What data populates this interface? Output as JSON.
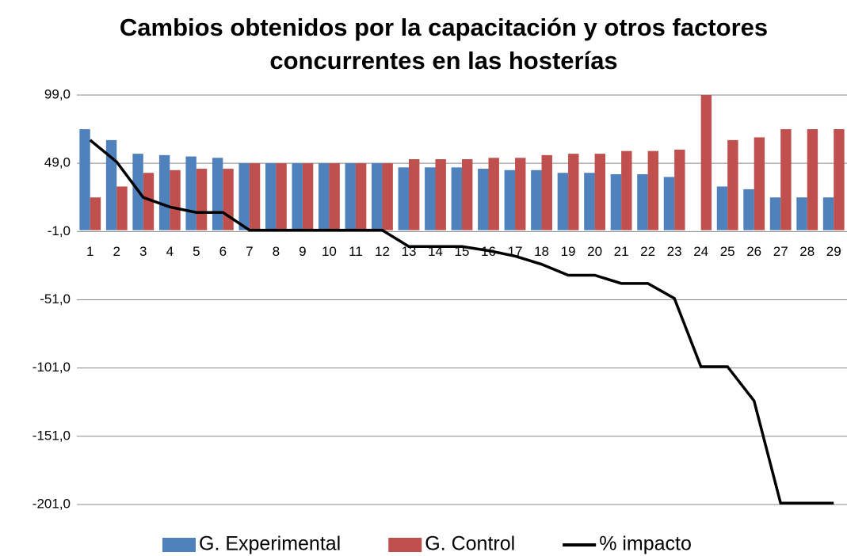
{
  "chart_data": {
    "type": "bar",
    "title": "Cambios obtenidos por la capacitación y otros factores concurrentes en las hosterías",
    "categories": [
      "1",
      "2",
      "3",
      "4",
      "5",
      "6",
      "7",
      "8",
      "9",
      "10",
      "11",
      "12",
      "13",
      "14",
      "15",
      "16",
      "17",
      "18",
      "19",
      "20",
      "21",
      "22",
      "23",
      "24",
      "25",
      "26",
      "27",
      "28",
      "29"
    ],
    "series": [
      {
        "name": "G. Experimental",
        "type": "bar",
        "color": "#4f81bd",
        "values": [
          74,
          66,
          56,
          55,
          54,
          53,
          49,
          49,
          49,
          49,
          49,
          49,
          46,
          46,
          46,
          45,
          44,
          44,
          42,
          42,
          41,
          41,
          39,
          null,
          32,
          30,
          24,
          24,
          24
        ]
      },
      {
        "name": "G. Control",
        "type": "bar",
        "color": "#c0504d",
        "values": [
          24,
          32,
          42,
          44,
          45,
          45,
          49,
          49,
          49,
          49,
          49,
          49,
          52,
          52,
          52,
          53,
          53,
          55,
          56,
          56,
          58,
          58,
          59,
          99,
          66,
          68,
          74,
          74,
          74
        ]
      },
      {
        "name": "% impacto",
        "type": "line",
        "color": "#000000",
        "values": [
          66,
          50,
          24,
          17,
          13,
          13,
          0,
          0,
          0,
          0,
          0,
          0,
          -12,
          -12,
          -12,
          -15,
          -19,
          -25,
          -33,
          -33,
          -39,
          -39,
          -50,
          -100,
          -100,
          -125,
          -200,
          -200,
          -200
        ]
      }
    ],
    "ylim": [
      -201,
      99
    ],
    "yticks": [
      {
        "value": -201,
        "label": "-201,0"
      },
      {
        "value": -151,
        "label": "-151,0"
      },
      {
        "value": -101,
        "label": "-101,0"
      },
      {
        "value": -51,
        "label": "-51,0"
      },
      {
        "value": -1,
        "label": "-1,0"
      },
      {
        "value": 49,
        "label": "49,0"
      },
      {
        "value": 99,
        "label": "99,0"
      }
    ],
    "grid": true,
    "legend": "bottom"
  }
}
